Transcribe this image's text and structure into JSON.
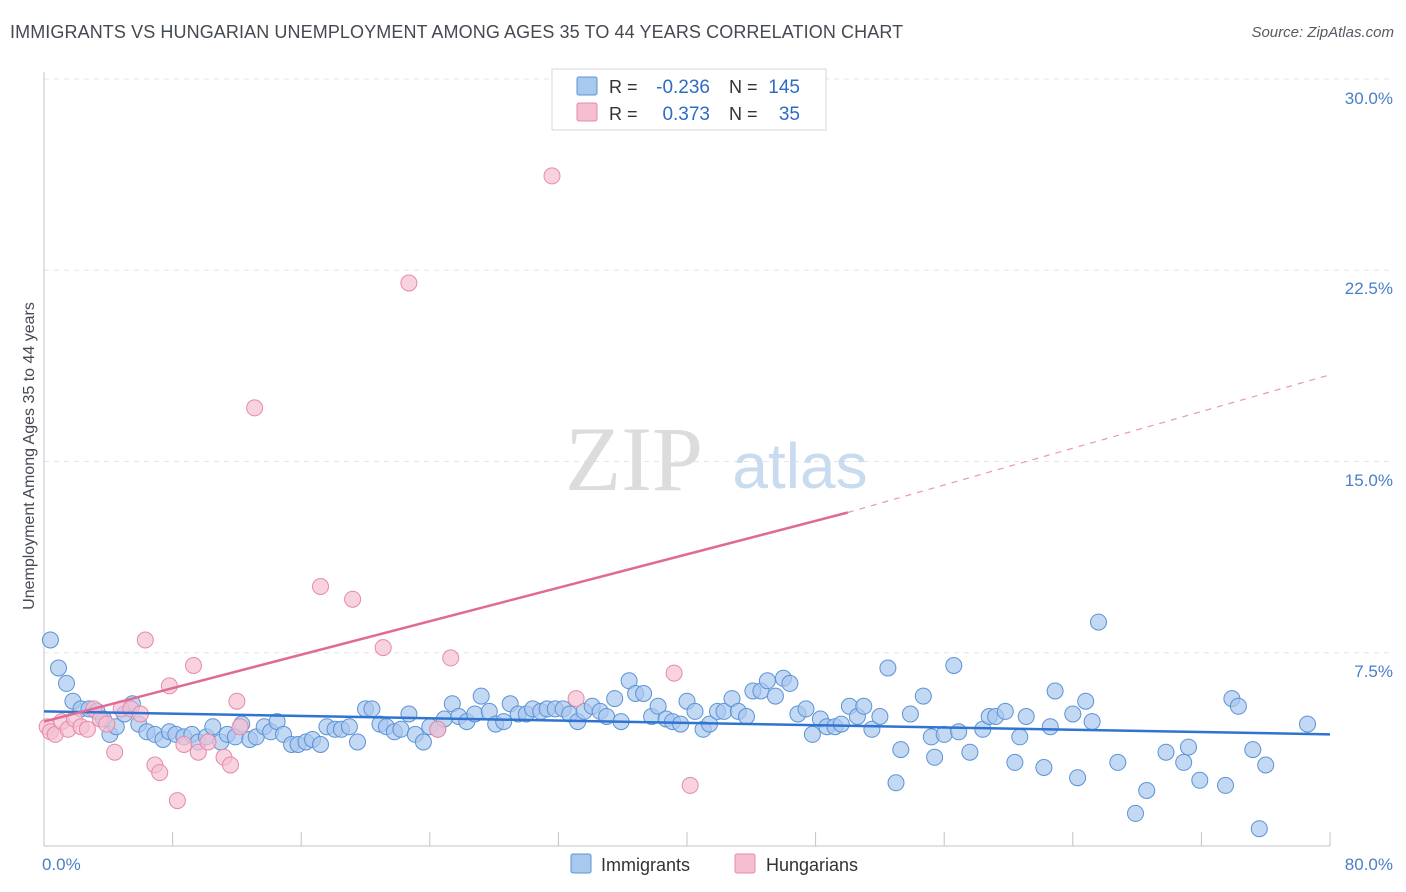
{
  "title": "IMMIGRANTS VS HUNGARIAN UNEMPLOYMENT AMONG AGES 35 TO 44 YEARS CORRELATION CHART",
  "source": "Source: ZipAtlas.com",
  "watermark": {
    "zip": "ZIP",
    "atlas": "atlas"
  },
  "legend": {
    "r_label": "R =",
    "n_label": "N =",
    "rows": [
      {
        "series": "Immigrants",
        "r": "-0.236",
        "n": "145"
      },
      {
        "series": "Hungarians",
        "r": "0.373",
        "n": "35"
      }
    ]
  },
  "colors": {
    "immigrants_fill": "#a9c8ee",
    "immigrants_stroke": "#5b93d6",
    "immigrants_line": "#2f74d0",
    "hungarians_fill": "#f5bfd1",
    "hungarians_stroke": "#e58aa9",
    "hungarians_line": "#e06a94",
    "tick_text": "#4a7fc6"
  },
  "chart_data": {
    "type": "scatter",
    "title": "IMMIGRANTS VS HUNGARIAN UNEMPLOYMENT AMONG AGES 35 TO 44 YEARS CORRELATION CHART",
    "xlabel": "",
    "ylabel": "Unemployment Among Ages 35 to 44 years",
    "xlim": [
      0,
      80
    ],
    "ylim": [
      0,
      30
    ],
    "x_tick_labels": [
      "0.0%",
      "80.0%"
    ],
    "y_ticks": [
      7.5,
      15.0,
      22.5,
      30.0
    ],
    "y_tick_labels": [
      "7.5%",
      "15.0%",
      "22.5%",
      "30.0%"
    ],
    "grid": true,
    "series": [
      {
        "name": "Immigrants",
        "r": -0.236,
        "n": 145,
        "trend": {
          "x": [
            0,
            80
          ],
          "y": [
            5.2,
            4.3
          ]
        },
        "points": [
          [
            0.4,
            8.0
          ],
          [
            0.9,
            6.9
          ],
          [
            1.4,
            6.3
          ],
          [
            1.8,
            5.6
          ],
          [
            2.3,
            5.3
          ],
          [
            2.8,
            5.3
          ],
          [
            3.3,
            5.2
          ],
          [
            3.7,
            4.9
          ],
          [
            4.1,
            4.3
          ],
          [
            4.5,
            4.6
          ],
          [
            5.0,
            5.1
          ],
          [
            5.5,
            5.5
          ],
          [
            5.9,
            4.7
          ],
          [
            6.4,
            4.4
          ],
          [
            6.9,
            4.3
          ],
          [
            7.4,
            4.1
          ],
          [
            7.8,
            4.4
          ],
          [
            8.2,
            4.3
          ],
          [
            8.7,
            4.2
          ],
          [
            9.2,
            4.3
          ],
          [
            9.6,
            4.0
          ],
          [
            10.1,
            4.2
          ],
          [
            10.5,
            4.6
          ],
          [
            11.0,
            4.0
          ],
          [
            11.4,
            4.3
          ],
          [
            11.9,
            4.2
          ],
          [
            12.3,
            4.7
          ],
          [
            12.8,
            4.1
          ],
          [
            13.2,
            4.2
          ],
          [
            13.7,
            4.6
          ],
          [
            14.1,
            4.4
          ],
          [
            14.5,
            4.8
          ],
          [
            14.9,
            4.3
          ],
          [
            15.4,
            3.9
          ],
          [
            15.8,
            3.9
          ],
          [
            16.3,
            4.0
          ],
          [
            16.7,
            4.1
          ],
          [
            17.2,
            3.9
          ],
          [
            17.6,
            4.6
          ],
          [
            18.1,
            4.5
          ],
          [
            18.5,
            4.5
          ],
          [
            19.0,
            4.6
          ],
          [
            19.5,
            4.0
          ],
          [
            20.0,
            5.3
          ],
          [
            20.4,
            5.3
          ],
          [
            20.9,
            4.7
          ],
          [
            21.3,
            4.6
          ],
          [
            21.8,
            4.4
          ],
          [
            22.2,
            4.5
          ],
          [
            22.7,
            5.1
          ],
          [
            23.1,
            4.3
          ],
          [
            23.6,
            4.0
          ],
          [
            24.0,
            4.6
          ],
          [
            24.5,
            4.5
          ],
          [
            24.9,
            4.9
          ],
          [
            25.4,
            5.5
          ],
          [
            25.8,
            5.0
          ],
          [
            26.3,
            4.8
          ],
          [
            26.8,
            5.1
          ],
          [
            27.2,
            5.8
          ],
          [
            27.7,
            5.2
          ],
          [
            28.1,
            4.7
          ],
          [
            28.6,
            4.8
          ],
          [
            29.0,
            5.5
          ],
          [
            29.5,
            5.1
          ],
          [
            30.0,
            5.1
          ],
          [
            30.4,
            5.3
          ],
          [
            30.9,
            5.2
          ],
          [
            31.3,
            5.3
          ],
          [
            31.8,
            5.3
          ],
          [
            32.3,
            5.3
          ],
          [
            32.7,
            5.1
          ],
          [
            33.2,
            4.8
          ],
          [
            33.6,
            5.2
          ],
          [
            34.1,
            5.4
          ],
          [
            34.6,
            5.2
          ],
          [
            35.0,
            5.0
          ],
          [
            35.5,
            5.7
          ],
          [
            35.9,
            4.8
          ],
          [
            36.4,
            6.4
          ],
          [
            36.8,
            5.9
          ],
          [
            37.3,
            5.9
          ],
          [
            37.8,
            5.0
          ],
          [
            38.2,
            5.4
          ],
          [
            38.7,
            4.9
          ],
          [
            39.1,
            4.8
          ],
          [
            39.6,
            4.7
          ],
          [
            40.0,
            5.6
          ],
          [
            40.5,
            5.2
          ],
          [
            41.0,
            4.5
          ],
          [
            41.4,
            4.7
          ],
          [
            41.9,
            5.2
          ],
          [
            42.3,
            5.2
          ],
          [
            42.8,
            5.7
          ],
          [
            43.2,
            5.2
          ],
          [
            43.7,
            5.0
          ],
          [
            44.1,
            6.0
          ],
          [
            44.6,
            6.0
          ],
          [
            45.0,
            6.4
          ],
          [
            45.5,
            5.8
          ],
          [
            46.0,
            6.5
          ],
          [
            46.4,
            6.3
          ],
          [
            46.9,
            5.1
          ],
          [
            47.4,
            5.3
          ],
          [
            47.8,
            4.3
          ],
          [
            48.3,
            4.9
          ],
          [
            48.7,
            4.6
          ],
          [
            49.2,
            4.6
          ],
          [
            49.6,
            4.7
          ],
          [
            50.1,
            5.4
          ],
          [
            50.6,
            5.0
          ],
          [
            51.0,
            5.4
          ],
          [
            51.5,
            4.5
          ],
          [
            52.0,
            5.0
          ],
          [
            52.5,
            6.9
          ],
          [
            53.0,
            2.4
          ],
          [
            53.3,
            3.7
          ],
          [
            53.9,
            5.1
          ],
          [
            54.7,
            5.8
          ],
          [
            55.2,
            4.2
          ],
          [
            55.4,
            3.4
          ],
          [
            56.0,
            4.3
          ],
          [
            56.6,
            7.0
          ],
          [
            56.9,
            4.4
          ],
          [
            57.6,
            3.6
          ],
          [
            58.4,
            4.5
          ],
          [
            58.8,
            5.0
          ],
          [
            59.2,
            5.0
          ],
          [
            59.8,
            5.2
          ],
          [
            60.4,
            3.2
          ],
          [
            60.7,
            4.2
          ],
          [
            61.1,
            5.0
          ],
          [
            62.2,
            3.0
          ],
          [
            62.6,
            4.6
          ],
          [
            62.9,
            6.0
          ],
          [
            64.0,
            5.1
          ],
          [
            64.3,
            2.6
          ],
          [
            64.8,
            5.6
          ],
          [
            65.2,
            4.8
          ],
          [
            65.6,
            8.7
          ],
          [
            66.8,
            3.2
          ],
          [
            67.9,
            1.2
          ],
          [
            68.6,
            2.1
          ],
          [
            69.8,
            3.6
          ],
          [
            70.9,
            3.2
          ],
          [
            71.2,
            3.8
          ],
          [
            71.9,
            2.5
          ],
          [
            73.5,
            2.3
          ],
          [
            73.9,
            5.7
          ],
          [
            74.3,
            5.4
          ],
          [
            75.2,
            3.7
          ],
          [
            75.6,
            0.6
          ],
          [
            76.0,
            3.1
          ],
          [
            78.6,
            4.7
          ]
        ]
      },
      {
        "name": "Hungarians",
        "r": 0.373,
        "n": 35,
        "trend": {
          "x": [
            0,
            50
          ],
          "y": [
            4.8,
            13.0
          ]
        },
        "trend_extension": {
          "x": [
            50,
            80
          ],
          "y": [
            13.0,
            18.4
          ]
        },
        "points": [
          [
            0.2,
            4.6
          ],
          [
            0.4,
            4.4
          ],
          [
            0.7,
            4.3
          ],
          [
            1.1,
            4.8
          ],
          [
            1.5,
            4.5
          ],
          [
            1.9,
            4.9
          ],
          [
            2.3,
            4.6
          ],
          [
            2.7,
            4.5
          ],
          [
            3.1,
            5.3
          ],
          [
            3.5,
            4.9
          ],
          [
            3.9,
            4.7
          ],
          [
            4.4,
            3.6
          ],
          [
            4.8,
            5.3
          ],
          [
            5.4,
            5.3
          ],
          [
            6.0,
            5.1
          ],
          [
            6.3,
            8.0
          ],
          [
            6.9,
            3.1
          ],
          [
            7.2,
            2.8
          ],
          [
            7.8,
            6.2
          ],
          [
            8.3,
            1.7
          ],
          [
            8.7,
            3.9
          ],
          [
            9.3,
            7.0
          ],
          [
            9.6,
            3.6
          ],
          [
            10.2,
            4.0
          ],
          [
            11.2,
            3.4
          ],
          [
            11.6,
            3.1
          ],
          [
            12.0,
            5.6
          ],
          [
            12.2,
            4.6
          ],
          [
            13.1,
            17.1
          ],
          [
            17.2,
            10.1
          ],
          [
            19.2,
            9.6
          ],
          [
            21.1,
            7.7
          ],
          [
            22.7,
            22.0
          ],
          [
            24.5,
            4.5
          ],
          [
            25.3,
            7.3
          ],
          [
            31.6,
            26.2
          ],
          [
            33.1,
            5.7
          ],
          [
            39.2,
            6.7
          ],
          [
            40.2,
            2.3
          ]
        ]
      }
    ]
  }
}
